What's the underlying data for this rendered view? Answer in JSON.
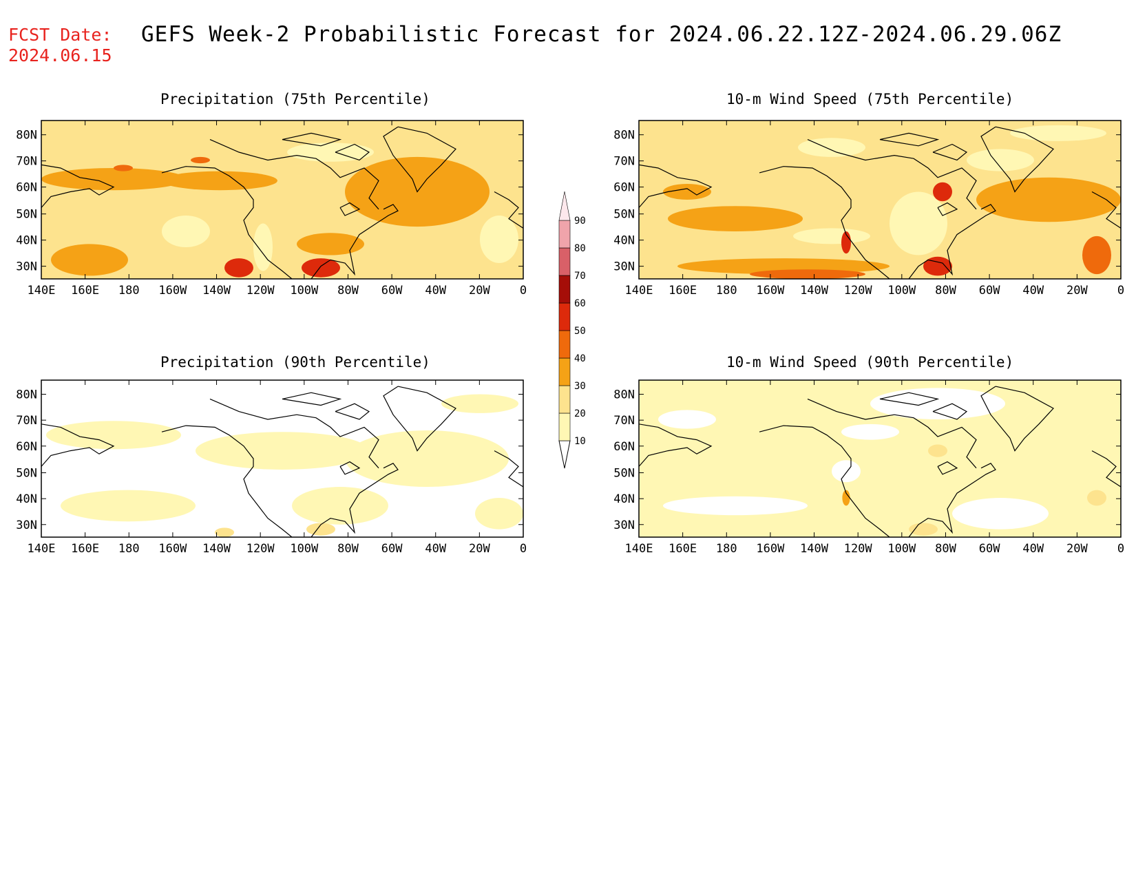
{
  "fcst_date": {
    "label": "FCST Date:",
    "value": "2024.06.15"
  },
  "title": "GEFS Week-2 Probabilistic Forecast for 2024.06.22.12Z-2024.06.29.06Z",
  "panels": [
    {
      "title": "Precipitation (75th Percentile)"
    },
    {
      "title": "10-m Wind Speed (75th Percentile)"
    },
    {
      "title": "Precipitation (90th Percentile)"
    },
    {
      "title": "10-m Wind Speed (90th Percentile)"
    }
  ],
  "lat_labels": [
    "80N",
    "70N",
    "60N",
    "50N",
    "40N",
    "30N"
  ],
  "lon_labels": [
    "140E",
    "160E",
    "180",
    "160W",
    "140W",
    "120W",
    "100W",
    "80W",
    "60W",
    "40W",
    "20W",
    "0"
  ],
  "colorbar": {
    "levels": [
      "10",
      "20",
      "30",
      "40",
      "50",
      "60",
      "70",
      "80",
      "90"
    ],
    "colors": [
      "#fff7b4",
      "#fde38e",
      "#f5a216",
      "#ef6a0c",
      "#dd2a0b",
      "#a50e08",
      "#d96068",
      "#f0a4ab",
      "#fde8ec"
    ]
  }
}
